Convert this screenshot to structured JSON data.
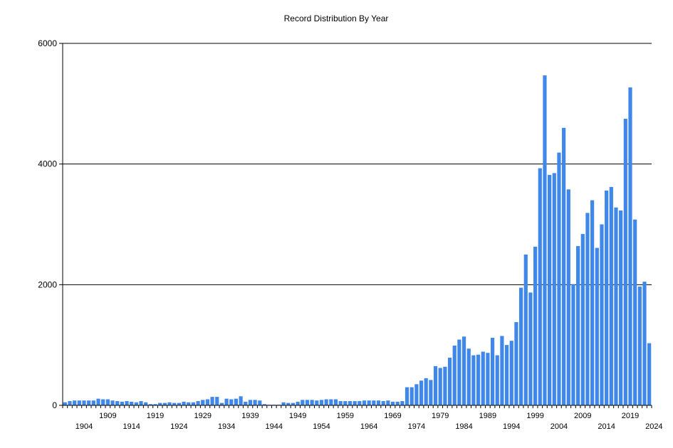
{
  "chart_data": {
    "type": "bar",
    "title": "Record Distribution By Year",
    "xlabel": "",
    "ylabel": "",
    "ylim": [
      0,
      6000
    ],
    "yticks": [
      0,
      2000,
      4000,
      6000
    ],
    "grid": "horizontal",
    "bar_color": "#3f87e8",
    "x_start": 1900,
    "x_end": 2024,
    "x_tick_labels": [
      "1904",
      "1909",
      "1914",
      "1919",
      "1924",
      "1929",
      "1934",
      "1939",
      "1944",
      "1949",
      "1954",
      "1959",
      "1964",
      "1969",
      "1974",
      "1979",
      "1984",
      "1989",
      "1994",
      "1999",
      "2004",
      "2009",
      "2014",
      "2019",
      "2024"
    ],
    "values": [
      50,
      70,
      80,
      80,
      80,
      80,
      80,
      110,
      100,
      100,
      80,
      70,
      60,
      70,
      60,
      50,
      70,
      50,
      20,
      20,
      40,
      40,
      50,
      40,
      40,
      60,
      50,
      50,
      70,
      90,
      100,
      140,
      140,
      40,
      110,
      100,
      110,
      150,
      60,
      90,
      90,
      80,
      20,
      10,
      10,
      10,
      50,
      40,
      40,
      60,
      90,
      90,
      90,
      80,
      90,
      100,
      100,
      100,
      70,
      70,
      70,
      70,
      70,
      80,
      80,
      80,
      80,
      70,
      80,
      60,
      60,
      70,
      300,
      300,
      350,
      410,
      450,
      420,
      650,
      620,
      640,
      790,
      990,
      1090,
      1140,
      940,
      830,
      840,
      890,
      870,
      1120,
      830,
      1150,
      1000,
      1070,
      1380,
      1950,
      2500,
      1870,
      2630,
      3930,
      5470,
      3820,
      3850,
      4190,
      4600,
      3580,
      2010,
      2640,
      2840,
      3190,
      3400,
      2610,
      3000,
      3560,
      3620,
      3280,
      3230,
      4750,
      5270,
      3080,
      1970,
      2050,
      1030
    ]
  }
}
